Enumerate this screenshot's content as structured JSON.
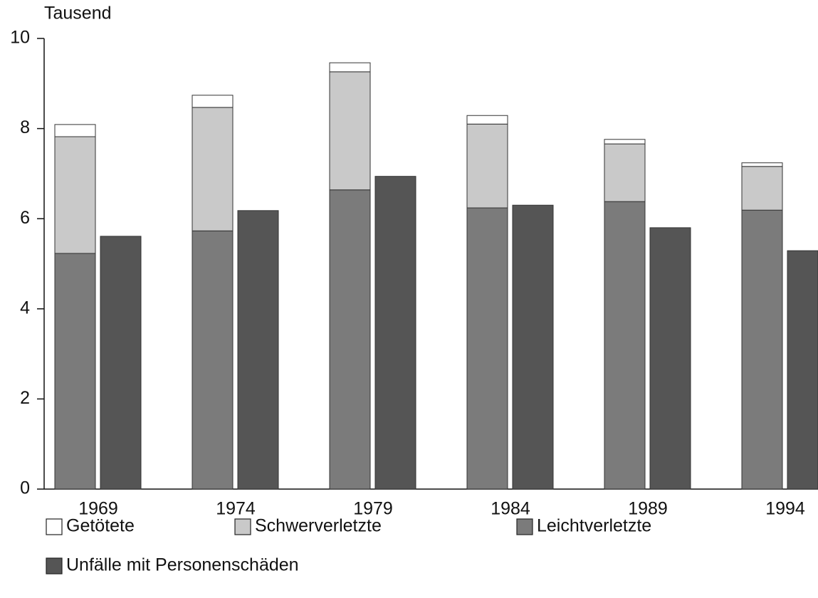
{
  "chart_data": {
    "type": "bar",
    "y_label": "Tausend",
    "categories": [
      "1969",
      "1974",
      "1979",
      "1984",
      "1989",
      "1994"
    ],
    "series": [
      {
        "name": "Getötete",
        "color": "#ffffff",
        "values": [
          0.27,
          0.27,
          0.2,
          0.19,
          0.1,
          0.08
        ]
      },
      {
        "name": "Schwerverletzte",
        "color": "#c9c9c9",
        "values": [
          2.59,
          2.74,
          2.62,
          1.86,
          1.28,
          0.97
        ]
      },
      {
        "name": "Leichtverletzte",
        "color": "#7b7b7b",
        "values": [
          5.23,
          5.73,
          6.64,
          6.24,
          6.38,
          6.19
        ]
      },
      {
        "name": "Unfälle mit Personenschäden",
        "color": "#555555",
        "values": [
          5.61,
          6.18,
          6.94,
          6.3,
          5.8,
          5.29
        ]
      }
    ],
    "ylim": [
      0,
      10
    ],
    "yticks": [
      0,
      2,
      4,
      6,
      8,
      10
    ]
  }
}
